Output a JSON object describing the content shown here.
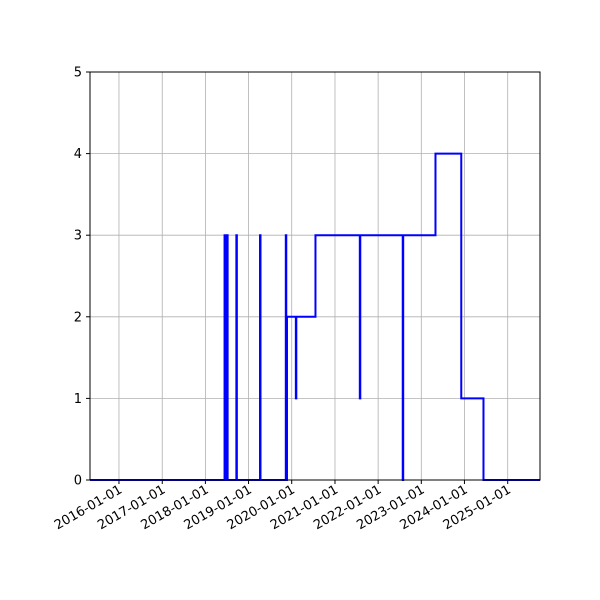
{
  "chart_data": {
    "type": "line",
    "title": "",
    "xlabel": "",
    "ylabel": "",
    "x_axis_type": "date",
    "xlim": [
      "2015-05-01",
      "2025-10-01"
    ],
    "ylim": [
      0,
      5
    ],
    "grid": true,
    "step_style": "post",
    "x_ticks": [
      "2016-01-01",
      "2017-01-01",
      "2018-01-01",
      "2019-01-01",
      "2020-01-01",
      "2021-01-01",
      "2022-01-01",
      "2023-01-01",
      "2024-01-01",
      "2025-01-01"
    ],
    "y_ticks": [
      0,
      1,
      2,
      3,
      4,
      5
    ],
    "series": [
      {
        "color": "#0000ff",
        "points": [
          [
            "2015-05-01",
            0
          ],
          [
            "2018-06-12",
            3
          ],
          [
            "2018-06-16",
            0
          ],
          [
            "2018-06-22",
            3
          ],
          [
            "2018-06-26",
            0
          ],
          [
            "2018-07-02",
            3
          ],
          [
            "2018-07-08",
            0
          ],
          [
            "2018-09-20",
            3
          ],
          [
            "2018-09-24",
            0
          ],
          [
            "2019-04-08",
            3
          ],
          [
            "2019-04-12",
            0
          ],
          [
            "2019-11-12",
            3
          ],
          [
            "2019-11-16",
            0
          ],
          [
            "2019-11-22",
            2
          ],
          [
            "2020-02-05",
            1
          ],
          [
            "2020-02-09",
            2
          ],
          [
            "2020-07-20",
            3
          ],
          [
            "2021-07-30",
            1
          ],
          [
            "2021-08-03",
            3
          ],
          [
            "2022-07-28",
            0
          ],
          [
            "2022-08-01",
            3
          ],
          [
            "2023-05-01",
            4
          ],
          [
            "2023-12-05",
            1
          ],
          [
            "2024-06-10",
            0
          ],
          [
            "2025-10-01",
            0
          ]
        ]
      }
    ]
  }
}
